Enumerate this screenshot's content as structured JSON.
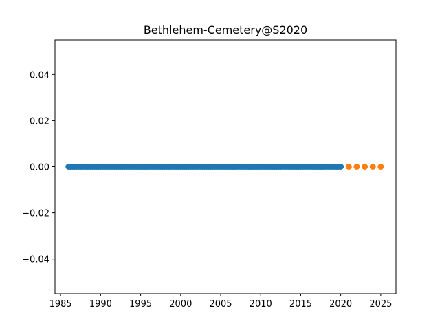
{
  "chart_data": {
    "type": "scatter",
    "title": "Bethlehem-Cemetery@S2020",
    "xlabel": "",
    "ylabel": "",
    "xlim": [
      1984.3,
      2026.9
    ],
    "ylim": [
      -0.055,
      0.055
    ],
    "x_ticks": [
      1985,
      1990,
      1995,
      2000,
      2005,
      2010,
      2015,
      2020,
      2025
    ],
    "y_ticks": [
      -0.04,
      -0.02,
      0.0,
      0.02,
      0.04
    ],
    "y_tick_labels": [
      "−0.04",
      "−0.02",
      "0.00",
      "0.02",
      "0.04"
    ],
    "grid": false,
    "series": [
      {
        "color": "#1f77b4",
        "x_start": 1986.0,
        "x_end": 2020.0,
        "x_step": 0.25,
        "y": 0.0
      },
      {
        "color": "#ff7f0e",
        "x": [
          2021,
          2022,
          2023,
          2024,
          2025
        ],
        "y": [
          0.0,
          0.0,
          0.0,
          0.0,
          0.0
        ]
      }
    ]
  }
}
